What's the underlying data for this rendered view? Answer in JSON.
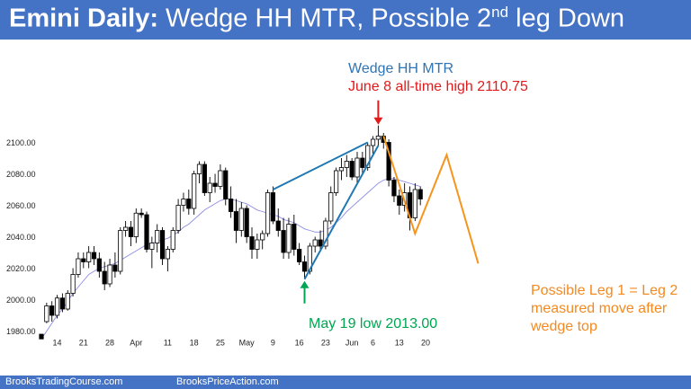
{
  "header": {
    "title_bold": "Emini Daily:",
    "title_main": " Wedge HH MTR, Possible 2",
    "title_sup": "nd",
    "title_end": " leg Down",
    "background": "#4472c4"
  },
  "footer": {
    "left_text": "BrooksTradingCourse.com",
    "right_text": "BrooksPriceAction.com"
  },
  "chart_data": {
    "type": "candlestick",
    "title": "Emini Daily: Wedge HH MTR, Possible 2nd leg Down",
    "ylim": [
      1972,
      2112
    ],
    "y_ticks": [
      1980,
      2000,
      2020,
      2040,
      2060,
      2080,
      2100
    ],
    "y_tick_labels": [
      "1980.00",
      "2000.00",
      "2020.00",
      "2040.00",
      "2060.00",
      "2080.00",
      "2100.00"
    ],
    "x_ticks": [
      {
        "label": "14",
        "bar": 3
      },
      {
        "label": "21",
        "bar": 8
      },
      {
        "label": "28",
        "bar": 13
      },
      {
        "label": "Apr",
        "bar": 18
      },
      {
        "label": "11",
        "bar": 24
      },
      {
        "label": "18",
        "bar": 29
      },
      {
        "label": "25",
        "bar": 34
      },
      {
        "label": "May",
        "bar": 39
      },
      {
        "label": "9",
        "bar": 44
      },
      {
        "label": "16",
        "bar": 49
      },
      {
        "label": "23",
        "bar": 54
      },
      {
        "label": "Jun",
        "bar": 59
      },
      {
        "label": "6",
        "bar": 63
      },
      {
        "label": "13",
        "bar": 68
      },
      {
        "label": "20",
        "bar": 73
      }
    ],
    "candles": [
      [
        1978,
        1978,
        1976,
        1975
      ],
      [
        1986,
        1998,
        1985,
        1996
      ],
      [
        1996,
        1999,
        1986,
        1990
      ],
      [
        1990,
        2003,
        1988,
        2001
      ],
      [
        2001,
        2004,
        1992,
        1994
      ],
      [
        1994,
        2006,
        1993,
        2004
      ],
      [
        2004,
        2020,
        2002,
        2016
      ],
      [
        2016,
        2030,
        2014,
        2026
      ],
      [
        2026,
        2030,
        2020,
        2024
      ],
      [
        2024,
        2034,
        2020,
        2030
      ],
      [
        2030,
        2034,
        2022,
        2026
      ],
      [
        2026,
        2030,
        2014,
        2018
      ],
      [
        2018,
        2024,
        2006,
        2010
      ],
      [
        2010,
        2026,
        2008,
        2022
      ],
      [
        2022,
        2030,
        2014,
        2018
      ],
      [
        2018,
        2046,
        2016,
        2044
      ],
      [
        2044,
        2050,
        2040,
        2046
      ],
      [
        2046,
        2050,
        2034,
        2040
      ],
      [
        2040,
        2058,
        2036,
        2055
      ],
      [
        2055,
        2058,
        2052,
        2054
      ],
      [
        2054,
        2056,
        2030,
        2032
      ],
      [
        2032,
        2040,
        2020,
        2036
      ],
      [
        2036,
        2048,
        2030,
        2044
      ],
      [
        2044,
        2046,
        2022,
        2026
      ],
      [
        2026,
        2034,
        2018,
        2032
      ],
      [
        2032,
        2046,
        2030,
        2044
      ],
      [
        2044,
        2064,
        2042,
        2060
      ],
      [
        2060,
        2068,
        2056,
        2064
      ],
      [
        2064,
        2070,
        2054,
        2058
      ],
      [
        2058,
        2082,
        2054,
        2080
      ],
      [
        2080,
        2088,
        2074,
        2086
      ],
      [
        2086,
        2088,
        2066,
        2068
      ],
      [
        2068,
        2078,
        2062,
        2074
      ],
      [
        2074,
        2080,
        2068,
        2072
      ],
      [
        2072,
        2086,
        2070,
        2082
      ],
      [
        2082,
        2084,
        2060,
        2064
      ],
      [
        2064,
        2072,
        2052,
        2056
      ],
      [
        2056,
        2064,
        2036,
        2044
      ],
      [
        2044,
        2062,
        2040,
        2058
      ],
      [
        2058,
        2060,
        2036,
        2040
      ],
      [
        2040,
        2046,
        2026,
        2032
      ],
      [
        2032,
        2042,
        2026,
        2038
      ],
      [
        2038,
        2044,
        2032,
        2042
      ],
      [
        2042,
        2070,
        2040,
        2068
      ],
      [
        2068,
        2072,
        2048,
        2050
      ],
      [
        2050,
        2058,
        2040,
        2044
      ],
      [
        2044,
        2052,
        2026,
        2030
      ],
      [
        2030,
        2052,
        2026,
        2048
      ],
      [
        2048,
        2054,
        2028,
        2032
      ],
      [
        2032,
        2036,
        2022,
        2024
      ],
      [
        2024,
        2028,
        2013,
        2018
      ],
      [
        2018,
        2036,
        2016,
        2034
      ],
      [
        2034,
        2040,
        2030,
        2038
      ],
      [
        2038,
        2044,
        2032,
        2034
      ],
      [
        2034,
        2052,
        2032,
        2050
      ],
      [
        2050,
        2072,
        2048,
        2068
      ],
      [
        2068,
        2084,
        2066,
        2082
      ],
      [
        2082,
        2090,
        2076,
        2084
      ],
      [
        2084,
        2092,
        2078,
        2088
      ],
      [
        2088,
        2090,
        2076,
        2078
      ],
      [
        2078,
        2094,
        2074,
        2090
      ],
      [
        2090,
        2094,
        2080,
        2084
      ],
      [
        2084,
        2100,
        2082,
        2098
      ],
      [
        2098,
        2104,
        2092,
        2102
      ],
      [
        2102,
        2110.75,
        2098,
        2104
      ],
      [
        2104,
        2106,
        2096,
        2100
      ],
      [
        2100,
        2102,
        2072,
        2076
      ],
      [
        2076,
        2078,
        2062,
        2066
      ],
      [
        2066,
        2070,
        2054,
        2060
      ],
      [
        2060,
        2074,
        2056,
        2068
      ],
      [
        2068,
        2072,
        2044,
        2052
      ],
      [
        2052,
        2074,
        2050,
        2070
      ],
      [
        2070,
        2072,
        2060,
        2064
      ]
    ],
    "moving_average": [
      1975,
      1980,
      1985,
      1990,
      1994,
      1999,
      2004,
      2008,
      2012,
      2016,
      2018,
      2020,
      2021,
      2022,
      2023,
      2025,
      2027,
      2029,
      2031,
      2033,
      2035,
      2036,
      2037,
      2038,
      2039,
      2041,
      2043,
      2046,
      2048,
      2051,
      2054,
      2057,
      2059,
      2061,
      2063,
      2064,
      2064,
      2063,
      2062,
      2061,
      2059,
      2057,
      2056,
      2055,
      2054,
      2053,
      2051,
      2050,
      2049,
      2047,
      2045,
      2044,
      2043,
      2043,
      2044,
      2046,
      2049,
      2052,
      2056,
      2059,
      2062,
      2065,
      2068,
      2071,
      2074,
      2076,
      2077,
      2077,
      2076,
      2075,
      2074,
      2073,
      2072
    ],
    "annotations": [
      {
        "text": "Wedge HH MTR",
        "color": "#2e75b6"
      },
      {
        "text": "June 8 all-time high 2110.75",
        "color": "#e31a1c"
      },
      {
        "text": "May 19 low 2013.00",
        "color": "#00a651"
      },
      {
        "text": "Possible Leg 1 = Leg 2",
        "color": "#f4891f"
      },
      {
        "text": "measured move after",
        "color": "#f4891f"
      },
      {
        "text": "wedge top",
        "color": "#f4891f"
      }
    ],
    "colors": {
      "wedge": "#1f78b4",
      "projection": "#f7941d",
      "moving_average": "#8c8ce6",
      "high_arrow": "#e31a1c",
      "low_arrow": "#00a651",
      "bull_candle": "#ffffff",
      "bear_candle": "#000000"
    },
    "grid": false
  }
}
